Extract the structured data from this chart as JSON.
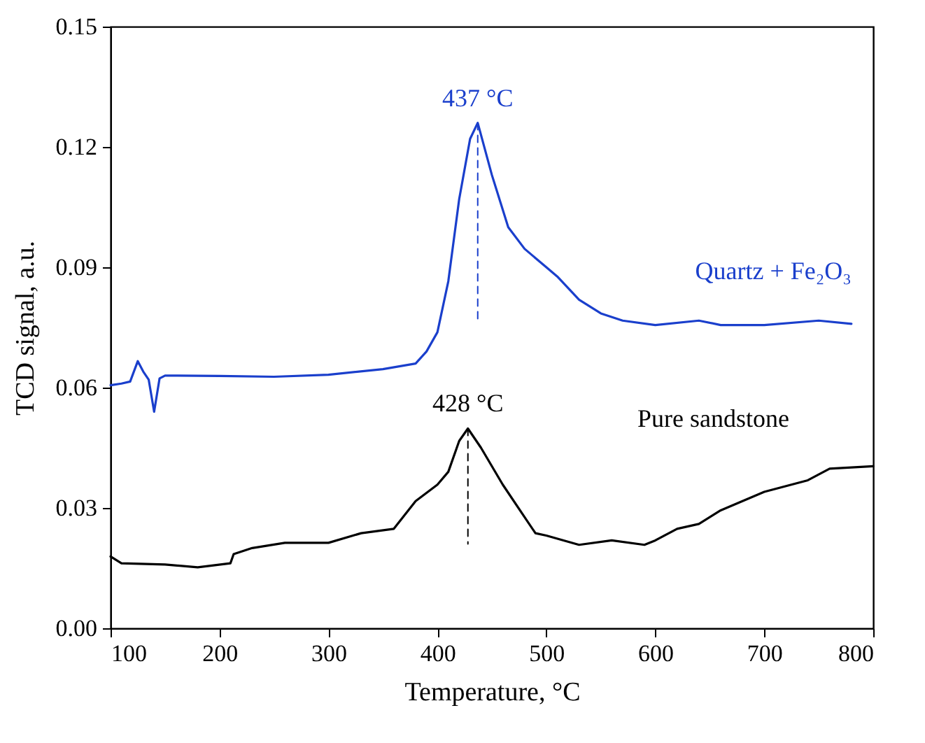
{
  "chart_data": {
    "type": "line",
    "xlabel": "Temperature, °C",
    "ylabel": "TCD signal, a.u.",
    "xlim": [
      100,
      800
    ],
    "xticks": [
      100,
      200,
      300,
      400,
      500,
      600,
      700,
      800
    ],
    "ylim": [
      0,
      0.15
    ],
    "yticks": [
      {
        "value": 0,
        "label": "0.00"
      },
      0.03,
      0.06,
      0.09,
      0.12,
      0.15
    ],
    "grid": false,
    "marker": "none",
    "series": [
      {
        "name": "Quartz + Fe₂O₃",
        "color": "#1a3fcc",
        "x": [
          100,
          110,
          118,
          125,
          130,
          135,
          140,
          145,
          150,
          200,
          250,
          300,
          350,
          380,
          390,
          400,
          410,
          420,
          430,
          437,
          450,
          465,
          480,
          500,
          510,
          530,
          550,
          570,
          600,
          640,
          660,
          700,
          750,
          780
        ],
        "values": [
          0.0606,
          0.061,
          0.0615,
          0.0666,
          0.064,
          0.062,
          0.054,
          0.0623,
          0.063,
          0.0629,
          0.0627,
          0.0632,
          0.0646,
          0.066,
          0.069,
          0.0738,
          0.0865,
          0.107,
          0.122,
          0.126,
          0.113,
          0.1,
          0.0946,
          0.09,
          0.0877,
          0.0819,
          0.0785,
          0.0767,
          0.0756,
          0.0767,
          0.0756,
          0.0756,
          0.0767,
          0.0759
        ]
      },
      {
        "name": "Pure sandstone",
        "color": "#000000",
        "x": [
          100,
          110,
          150,
          180,
          210,
          213,
          230,
          260,
          300,
          330,
          360,
          380,
          400,
          410,
          420,
          428,
          440,
          460,
          480,
          490,
          500,
          530,
          560,
          590,
          600,
          620,
          640,
          660,
          700,
          740,
          760,
          800
        ],
        "values": [
          0.0179,
          0.0162,
          0.0159,
          0.0152,
          0.0162,
          0.0185,
          0.02,
          0.0213,
          0.0213,
          0.0237,
          0.0248,
          0.0317,
          0.0358,
          0.039,
          0.0467,
          0.0498,
          0.045,
          0.0358,
          0.0277,
          0.0237,
          0.0231,
          0.0208,
          0.0219,
          0.0208,
          0.0219,
          0.0248,
          0.026,
          0.0294,
          0.034,
          0.0369,
          0.0398,
          0.0404
        ]
      },
      {
        "color": "#1a3fcc",
        "line_style": "dashed",
        "x": [
          437,
          437
        ],
        "values": [
          0.126,
          0.077
        ]
      },
      {
        "color": "#000000",
        "line_style": "dashed",
        "x": [
          428,
          428
        ],
        "values": [
          0.0498,
          0.021
        ]
      }
    ],
    "annotations": [
      {
        "text": "437 °C",
        "x": 437,
        "y": 0.126
      },
      {
        "text": "428 °C",
        "x": 428,
        "y": 0.0498
      }
    ]
  }
}
